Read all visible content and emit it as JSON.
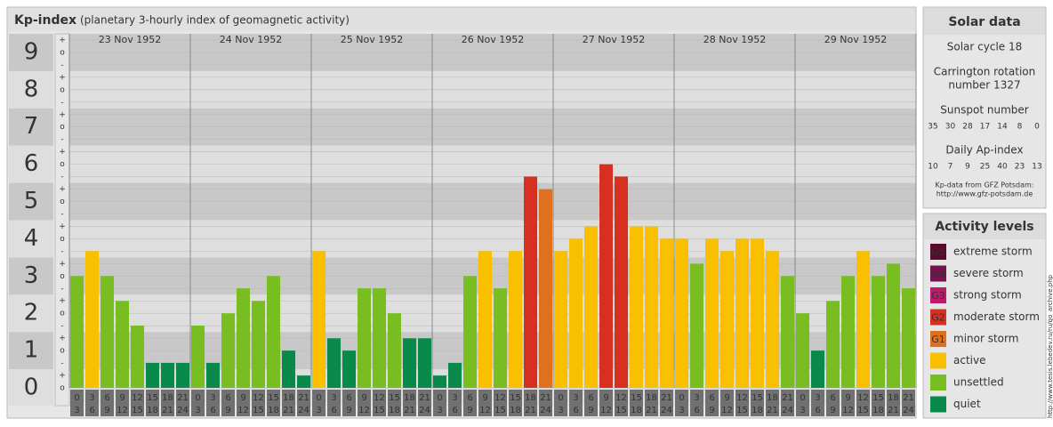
{
  "chart_data": {
    "type": "bar",
    "title": "Kp-index",
    "subtitle": "(planetary 3-hourly index of geomagnetic activity)",
    "ylim": [
      0,
      9.5
    ],
    "yticks": [
      0,
      1,
      2,
      3,
      4,
      5,
      6,
      7,
      8,
      9
    ],
    "minor_labels": [
      "-",
      "o",
      "+"
    ],
    "hours_from": [
      "0",
      "3",
      "6",
      "9",
      "12",
      "15",
      "18",
      "21"
    ],
    "hours_to": [
      "3",
      "6",
      "9",
      "12",
      "15",
      "18",
      "21",
      "24"
    ],
    "days": [
      {
        "label": "23 Nov 1952",
        "values": [
          3,
          3.67,
          3,
          2.33,
          1.67,
          0.67,
          0.67,
          0.67
        ],
        "colors": [
          "#78be20",
          "#f8c000",
          "#78be20",
          "#78be20",
          "#78be20",
          "#0a8a4a",
          "#0a8a4a",
          "#0a8a4a"
        ]
      },
      {
        "label": "24 Nov 1952",
        "values": [
          1.67,
          0.67,
          2,
          2.67,
          2.33,
          3,
          1,
          0.33
        ],
        "colors": [
          "#78be20",
          "#0a8a4a",
          "#78be20",
          "#78be20",
          "#78be20",
          "#78be20",
          "#0a8a4a",
          "#0a8a4a"
        ]
      },
      {
        "label": "25 Nov 1952",
        "values": [
          3.67,
          1.33,
          1,
          2.67,
          2.67,
          2,
          1.33,
          1.33
        ],
        "colors": [
          "#f8c000",
          "#0a8a4a",
          "#0a8a4a",
          "#78be20",
          "#78be20",
          "#78be20",
          "#0a8a4a",
          "#0a8a4a"
        ]
      },
      {
        "label": "26 Nov 1952",
        "values": [
          0.33,
          0.67,
          3,
          3.67,
          2.67,
          3.67,
          5.67,
          5.33
        ],
        "colors": [
          "#0a8a4a",
          "#0a8a4a",
          "#78be20",
          "#f8c000",
          "#78be20",
          "#f8c000",
          "#d83020",
          "#e07020"
        ]
      },
      {
        "label": "27 Nov 1952",
        "values": [
          3.67,
          4,
          4.33,
          6,
          5.67,
          4.33,
          4.33,
          4
        ],
        "colors": [
          "#f8c000",
          "#f8c000",
          "#f8c000",
          "#d83020",
          "#d83020",
          "#f8c000",
          "#f8c000",
          "#f8c000"
        ]
      },
      {
        "label": "28 Nov 1952",
        "values": [
          4,
          3.33,
          4,
          3.67,
          4,
          4,
          3.67,
          3
        ],
        "colors": [
          "#f8c000",
          "#78be20",
          "#f8c000",
          "#f8c000",
          "#f8c000",
          "#f8c000",
          "#f8c000",
          "#78be20"
        ]
      },
      {
        "label": "29 Nov 1952",
        "values": [
          2,
          1,
          2.33,
          3,
          3.67,
          3,
          3.33,
          2.67
        ],
        "colors": [
          "#78be20",
          "#0a8a4a",
          "#78be20",
          "#78be20",
          "#f8c000",
          "#78be20",
          "#78be20",
          "#78be20"
        ]
      }
    ]
  },
  "solar_data": {
    "title": "Solar data",
    "cycle": "Solar cycle 18",
    "carrington_1": "Carrington rotation",
    "carrington_2": "number 1327",
    "sunspot_title": "Sunspot number",
    "sunspots": [
      "35",
      "30",
      "28",
      "17",
      "14",
      "8",
      "0"
    ],
    "ap_title": "Daily Ap-index",
    "ap": [
      "10",
      "7",
      "9",
      "25",
      "40",
      "23",
      "13"
    ],
    "source_1": "Kp-data from GFZ Potsdam:",
    "source_2": "http://www.gfz-potsdam.de"
  },
  "activity_levels": {
    "title": "Activity levels",
    "items": [
      {
        "badge": "G5",
        "name": "extreme storm",
        "color": "#5a0a2a"
      },
      {
        "badge": "G4",
        "name": "severe storm",
        "color": "#7a1050"
      },
      {
        "badge": "G3",
        "name": "strong storm",
        "color": "#c0186a"
      },
      {
        "badge": "G2",
        "name": "moderate storm",
        "color": "#d83020"
      },
      {
        "badge": "G1",
        "name": "minor storm",
        "color": "#e07020"
      },
      {
        "name": "active",
        "color": "#f8c000"
      },
      {
        "name": "unsettled",
        "color": "#78be20"
      },
      {
        "name": "quiet",
        "color": "#0a8a4a"
      }
    ]
  },
  "watermark": "http://www.tesis.lebedev.ru/ru/go_archive.php"
}
